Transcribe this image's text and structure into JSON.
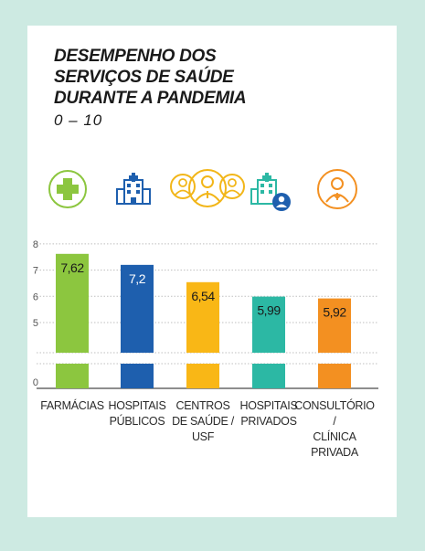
{
  "colors": {
    "background": "#cdeae2",
    "card": "#ffffff",
    "grid": "#bfbfbf",
    "text": "#1a1a1a"
  },
  "icons": [
    {
      "name": "pharmacy-cross-icon",
      "color": "#8cc63f"
    },
    {
      "name": "public-hospital-icon",
      "color": "#1e5fae"
    },
    {
      "name": "health-center-team-icon",
      "color": "#f2b619"
    },
    {
      "name": "private-hospital-icon",
      "color": "#2cb8a4"
    },
    {
      "name": "doctor-icon",
      "color": "#f39021"
    }
  ],
  "chart_data": {
    "type": "bar",
    "title": "DESEMPENHO DOS\nSERVIÇOS DE SAÚDE\nDURANTE A PANDEMIA",
    "subtitle": "0 – 10",
    "categories": [
      "FARMÁCIAS",
      "HOSPITAIS\nPÚBLICOS",
      "CENTROS\nDE SAÚDE /\nUSF",
      "HOSPITAIS\nPRIVADOS",
      "CONSULTÓRIO /\nCLÍNICA\nPRIVADA"
    ],
    "values": [
      7.62,
      7.2,
      6.54,
      5.99,
      5.92
    ],
    "data_labels": [
      "7,62",
      "7,2",
      "6,54",
      "5,99",
      "5,92"
    ],
    "colors": [
      "#8cc63f",
      "#1e5fae",
      "#f9b716",
      "#2cb8a4",
      "#f39021"
    ],
    "y_ticks": [
      "8",
      "7",
      "6",
      "5",
      "0"
    ],
    "y_axis": "broken axis between 0 and 5",
    "grid": "dotted horizontal",
    "xlabel": "",
    "ylabel": ""
  }
}
